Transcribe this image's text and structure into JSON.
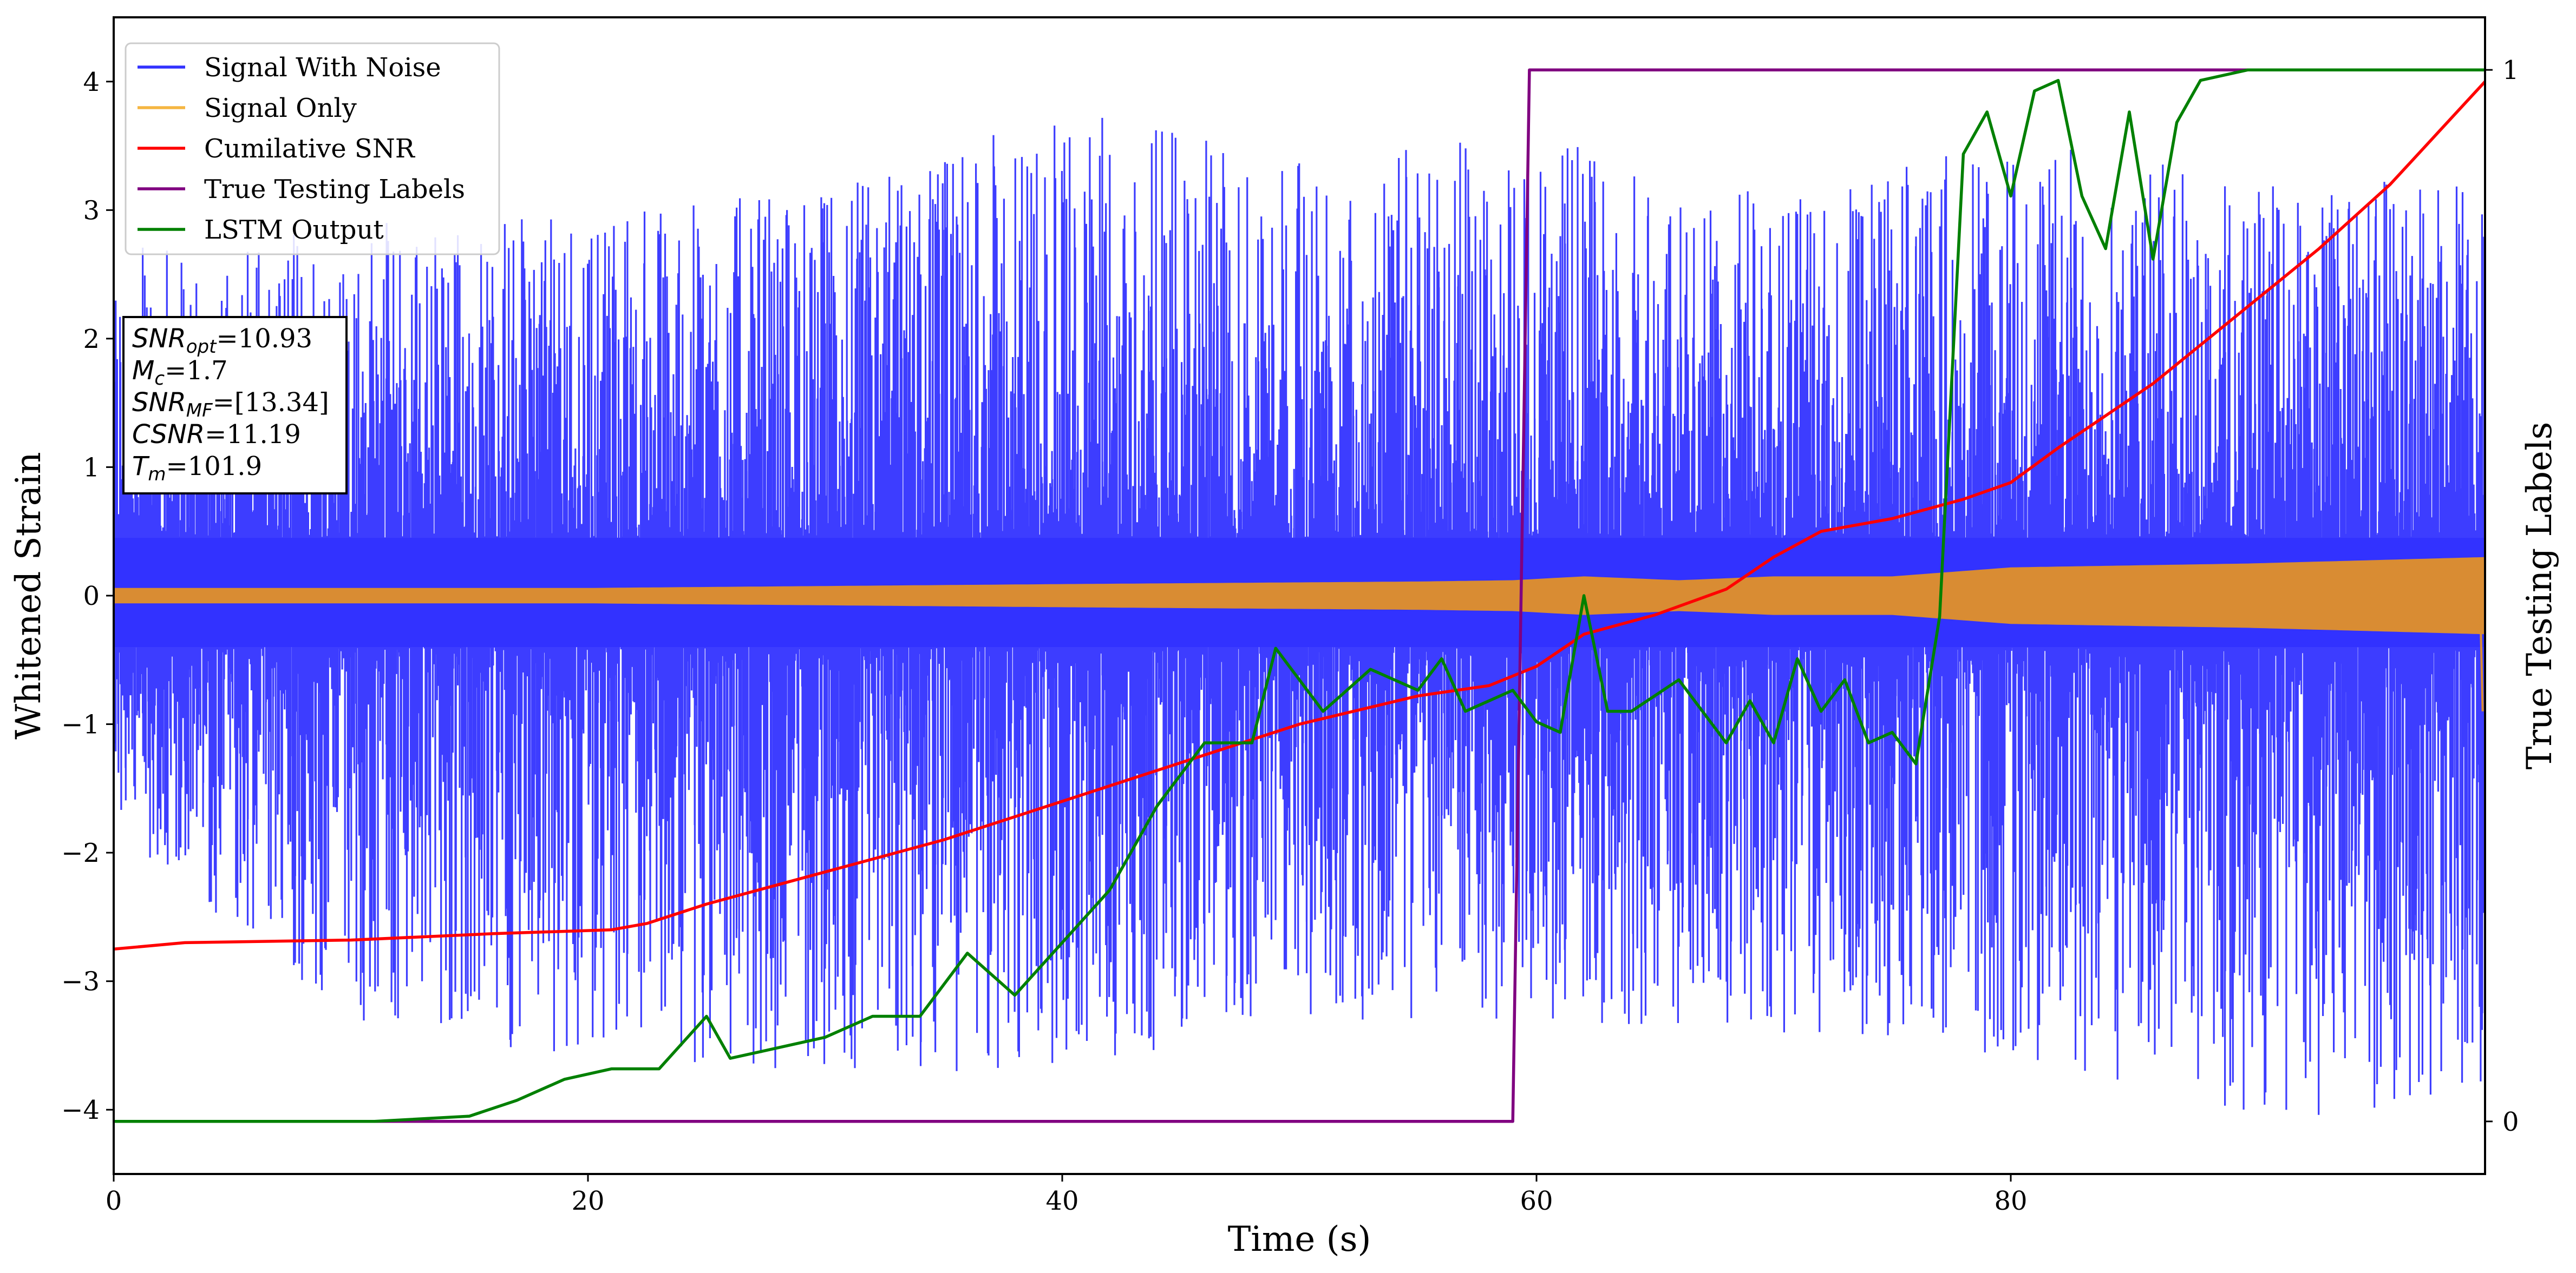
{
  "chart_data": {
    "type": "line",
    "xlabel": "Time (s)",
    "ylabel": "Whitened Strain",
    "ylabel_right": "True Testing Labels",
    "xlim": [
      0,
      100
    ],
    "ylim": [
      -4.5,
      4.5
    ],
    "ylim_right": [
      -0.05,
      1.05
    ],
    "x_ticks": [
      0,
      20,
      40,
      60,
      80
    ],
    "y_ticks": [
      -4,
      -3,
      -2,
      -1,
      0,
      1,
      2,
      3,
      4
    ],
    "y_ticks_right": [
      0,
      1
    ],
    "grid": false,
    "legend_position": "upper left",
    "legend": [
      {
        "label": "Signal With Noise",
        "color": "#3333ff"
      },
      {
        "label": "Signal Only",
        "color": "#f5b642"
      },
      {
        "label": "Cumilative SNR",
        "color": "#ff0000"
      },
      {
        "label": "True Testing Labels",
        "color": "#800080"
      },
      {
        "label": "LSTM Output",
        "color": "#008000"
      }
    ],
    "annotation": [
      {
        "sym": "SNR",
        "sub": "opt",
        "value": "=10.93"
      },
      {
        "sym": "M",
        "sub": "c",
        "value": "=1.7"
      },
      {
        "sym": "SNR",
        "sub": "MF",
        "value": "=[13.34]"
      },
      {
        "sym": "CSNR",
        "sub": "",
        "value": "=11.19"
      },
      {
        "sym": "T",
        "sub": "m",
        "value": "=101.9"
      }
    ],
    "series": [
      {
        "name": "Signal With Noise",
        "axis": "left",
        "color": "#3333ff",
        "style": "noise",
        "envelope_x": [
          0,
          10,
          20,
          30,
          40,
          50,
          60,
          70,
          80,
          90,
          100
        ],
        "envelope_upper": [
          2.7,
          2.9,
          3.0,
          3.2,
          3.8,
          3.4,
          3.7,
          3.1,
          3.6,
          3.3,
          3.2
        ],
        "envelope_lower": [
          -1.8,
          -3.4,
          -3.6,
          -3.7,
          -3.7,
          -3.3,
          -3.3,
          -3.4,
          -3.6,
          -4.1,
          -3.9
        ],
        "band_upper": 0.45,
        "band_lower": -0.4
      },
      {
        "name": "Signal Only",
        "axis": "left",
        "color": "#f5b642",
        "style": "chirp",
        "x": [
          0,
          20,
          40,
          55,
          59,
          62,
          66,
          70,
          75,
          80,
          90,
          100
        ],
        "amplitude": [
          0.06,
          0.06,
          0.09,
          0.11,
          0.12,
          0.15,
          0.12,
          0.15,
          0.15,
          0.22,
          0.25,
          0.3
        ]
      },
      {
        "name": "Cumilative SNR",
        "axis": "left",
        "color": "#ff0000",
        "x": [
          0,
          3,
          10,
          16,
          21,
          22.5,
          25,
          30,
          35,
          40,
          45,
          50,
          55,
          58,
          60,
          62,
          65,
          68,
          70,
          72,
          75,
          78,
          80,
          82,
          86,
          90,
          93,
          96,
          98,
          100
        ],
        "y": [
          -2.75,
          -2.7,
          -2.68,
          -2.63,
          -2.6,
          -2.55,
          -2.4,
          -2.15,
          -1.9,
          -1.6,
          -1.3,
          -1.0,
          -0.78,
          -0.7,
          -0.55,
          -0.3,
          -0.15,
          0.05,
          0.3,
          0.5,
          0.6,
          0.75,
          0.88,
          1.15,
          1.65,
          2.25,
          2.7,
          3.2,
          3.6,
          4.0
        ]
      },
      {
        "name": "True Testing Labels",
        "axis": "right",
        "color": "#800080",
        "x": [
          0,
          59,
          59.7,
          100
        ],
        "y": [
          0,
          0,
          1,
          1
        ]
      },
      {
        "name": "LSTM Output",
        "axis": "right",
        "color": "#008000",
        "x": [
          0,
          11,
          15,
          17,
          19,
          21,
          23,
          25,
          26,
          28,
          30,
          32,
          34,
          36,
          38,
          40,
          42,
          44,
          46,
          48,
          49,
          50,
          51,
          53,
          55,
          56,
          57,
          59,
          60,
          61,
          62,
          63,
          64,
          66,
          68,
          69,
          70,
          71,
          72,
          73,
          74,
          75,
          76,
          77,
          78,
          79,
          80,
          81,
          82,
          83,
          84,
          85,
          86,
          87,
          88,
          90,
          100
        ],
        "y": [
          0,
          0,
          0.005,
          0.02,
          0.04,
          0.05,
          0.05,
          0.1,
          0.06,
          0.07,
          0.08,
          0.1,
          0.1,
          0.16,
          0.12,
          0.17,
          0.22,
          0.3,
          0.36,
          0.36,
          0.45,
          0.42,
          0.39,
          0.43,
          0.41,
          0.44,
          0.39,
          0.41,
          0.38,
          0.37,
          0.5,
          0.39,
          0.39,
          0.42,
          0.36,
          0.4,
          0.36,
          0.44,
          0.39,
          0.42,
          0.36,
          0.37,
          0.34,
          0.48,
          0.92,
          0.96,
          0.88,
          0.98,
          0.99,
          0.88,
          0.83,
          0.96,
          0.82,
          0.95,
          0.99,
          1.0,
          1.0
        ]
      }
    ]
  }
}
